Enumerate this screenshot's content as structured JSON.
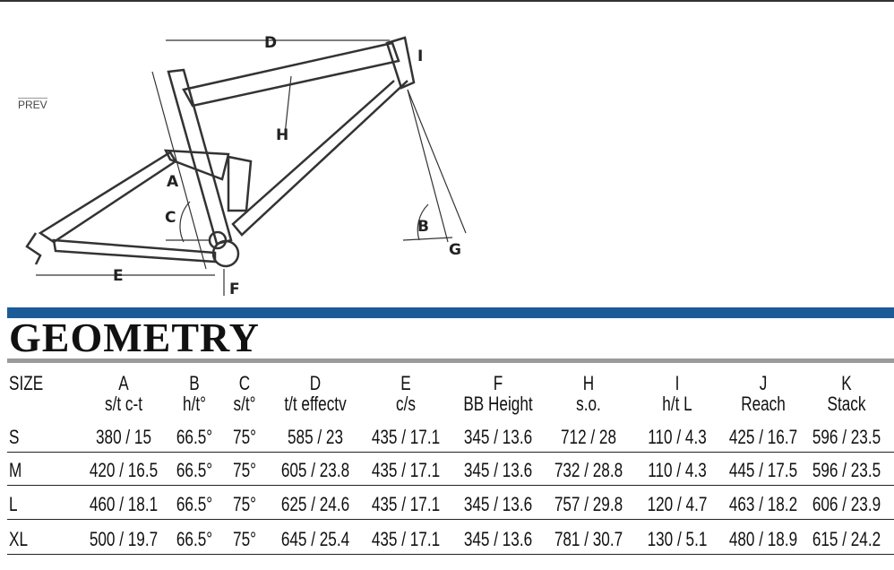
{
  "nav": {
    "prev": "PREV"
  },
  "diagram": {
    "labels": [
      "D",
      "I",
      "H",
      "A",
      "C",
      "B",
      "G",
      "E",
      "F"
    ]
  },
  "title": "GEOMETRY",
  "table": {
    "columns": [
      {
        "letter": "SIZE"
      },
      {
        "letter": "A",
        "name": "s/t c-t"
      },
      {
        "letter": "B",
        "name": "h/t°"
      },
      {
        "letter": "C",
        "name": "s/t°"
      },
      {
        "letter": "D",
        "name": "t/t effectv"
      },
      {
        "letter": "E",
        "name": "c/s"
      },
      {
        "letter": "F",
        "name": "BB Height"
      },
      {
        "letter": "H",
        "name": "s.o."
      },
      {
        "letter": "I",
        "name": "h/t L"
      },
      {
        "letter": "J",
        "name": "Reach"
      },
      {
        "letter": "K",
        "name": "Stack"
      }
    ],
    "rows": [
      [
        "S",
        "380 / 15",
        "66.5°",
        "75°",
        "585 / 23",
        "435 / 17.1",
        "345 / 13.6",
        "712 / 28",
        "110 / 4.3",
        "425 / 16.7",
        "596 / 23.5"
      ],
      [
        "M",
        "420 / 16.5",
        "66.5°",
        "75°",
        "605 / 23.8",
        "435 / 17.1",
        "345 / 13.6",
        "732 / 28.8",
        "110 / 4.3",
        "445 / 17.5",
        "596 / 23.5"
      ],
      [
        "L",
        "460 / 18.1",
        "66.5°",
        "75°",
        "625 / 24.6",
        "435 / 17.1",
        "345 / 13.6",
        "757 / 29.8",
        "120 / 4.7",
        "463 / 18.2",
        "606 / 23.9"
      ],
      [
        "XL",
        "500 / 19.7",
        "66.5°",
        "75°",
        "645 / 25.4",
        "435 / 17.1",
        "345 / 13.6",
        "781 / 30.7",
        "130 / 5.1",
        "480 / 18.9",
        "615 / 24.2"
      ]
    ]
  }
}
